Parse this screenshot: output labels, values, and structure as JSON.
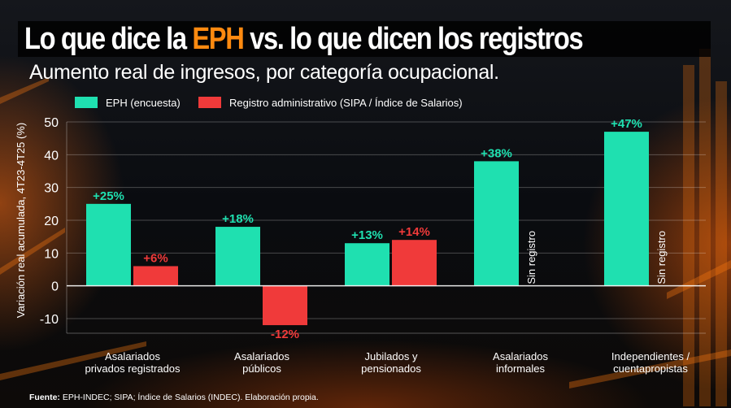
{
  "header": {
    "title_part1": "Lo que dice la ",
    "title_accent": "EPH",
    "title_part2": " vs. lo que dicen los registros",
    "subtitle": "Aumento real de ingresos, por categoría ocupacional."
  },
  "footer": {
    "label": "Fuente:",
    "text": " EPH-INDEC; SIPA; Índice de Salarios (INDEC). Elaboración propia."
  },
  "colors": {
    "eph": "#1fe0b0",
    "registro": "#f03a3a",
    "accent": "#ff8a10"
  },
  "chart_data": {
    "type": "bar",
    "title": "",
    "xlabel": "",
    "ylabel": "Variación real acumulada, 4T23-4T25 (%)",
    "ylim": [
      -10,
      50
    ],
    "yticks": [
      "50",
      "40",
      "30",
      "20",
      "10",
      "0",
      "-10"
    ],
    "legend_position": "top-left",
    "categories": [
      [
        "Asalariados",
        "privados registrados"
      ],
      [
        "Asalariados",
        "públicos"
      ],
      [
        "Jubilados y",
        "pensionados"
      ],
      [
        "Asalariados",
        "informales"
      ],
      [
        "Independientes /",
        "cuentapropistas"
      ]
    ],
    "series": [
      {
        "name": "EPH (encuesta)",
        "values": [
          25,
          18,
          13,
          38,
          47
        ],
        "labels": [
          "+25%",
          "+18%",
          "+13%",
          "+38%",
          "+47%"
        ]
      },
      {
        "name": "Registro administrativo (SIPA / Índice de Salarios)",
        "values": [
          6,
          -12,
          14,
          null,
          null
        ],
        "labels": [
          "+6%",
          "-12%",
          "+14%",
          "Sin registro",
          "Sin registro"
        ]
      }
    ]
  }
}
